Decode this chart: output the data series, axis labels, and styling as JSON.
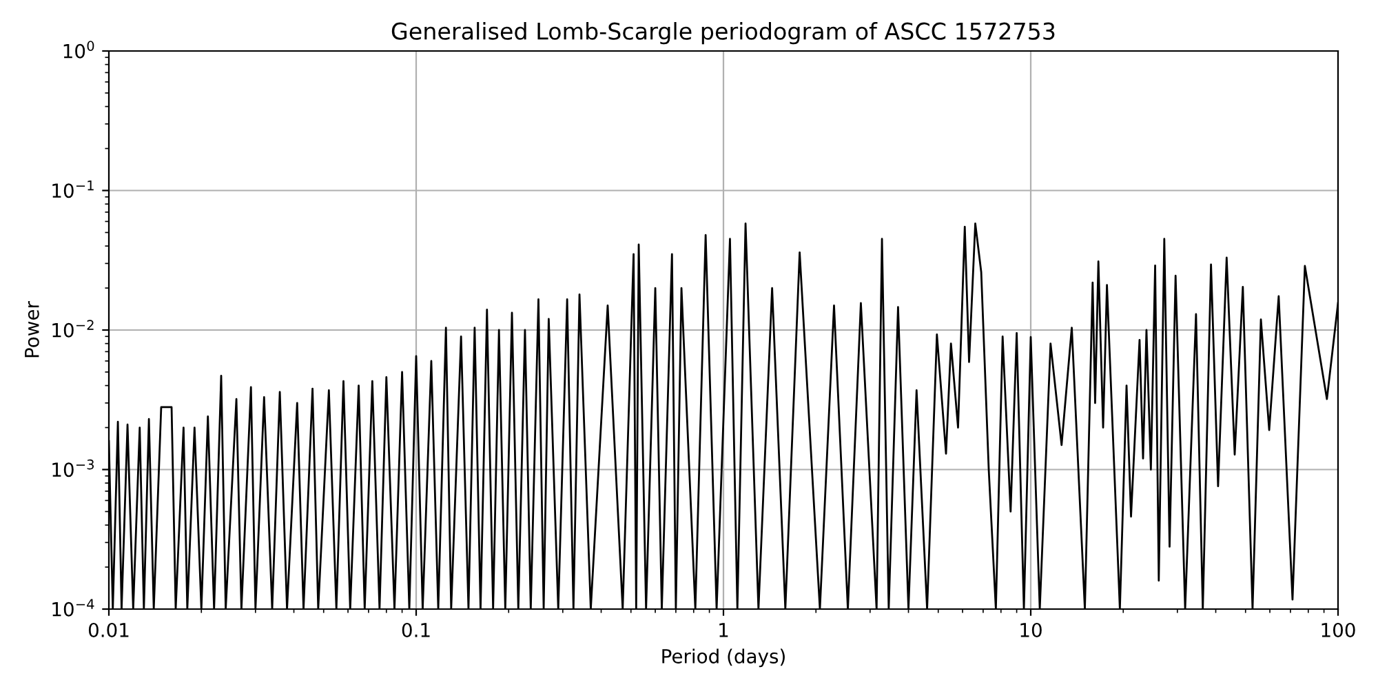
{
  "chart_data": {
    "type": "line",
    "title": "Generalised Lomb-Scargle periodogram of ASCC 1572753",
    "xlabel": "Period (days)",
    "ylabel": "Power",
    "log": "xy",
    "grid": true,
    "marker": "none",
    "line_style": "solid",
    "xlim": [
      0.01,
      100
    ],
    "ylim": [
      0.0001,
      1
    ],
    "xticks": [
      0.01,
      0.1,
      1,
      10,
      100
    ],
    "yticks": [
      {
        "value": 0.0001,
        "label": "10$^{−4}$"
      },
      {
        "value": 0.001,
        "label": "10$^{−3}$"
      },
      {
        "value": 0.01,
        "label": "10$^{−2}$"
      },
      {
        "value": 0.1,
        "label": "10$^{−1}$"
      },
      {
        "value": 1,
        "label": "10$^{0}$"
      }
    ],
    "series": [
      {
        "color": "#000000",
        "x": [
          0.01,
          0.0103,
          0.0107,
          0.011,
          0.0115,
          0.012,
          0.0126,
          0.013,
          0.0135,
          0.014,
          0.0148,
          0.016,
          0.0165,
          0.0175,
          0.018,
          0.019,
          0.02,
          0.021,
          0.022,
          0.0232,
          0.024,
          0.026,
          0.027,
          0.029,
          0.03,
          0.032,
          0.034,
          0.036,
          0.038,
          0.041,
          0.043,
          0.046,
          0.048,
          0.052,
          0.055,
          0.058,
          0.061,
          0.065,
          0.068,
          0.072,
          0.076,
          0.08,
          0.085,
          0.09,
          0.095,
          0.1,
          0.105,
          0.112,
          0.118,
          0.125,
          0.13,
          0.14,
          0.148,
          0.155,
          0.162,
          0.17,
          0.178,
          0.186,
          0.195,
          0.205,
          0.215,
          0.226,
          0.236,
          0.25,
          0.26,
          0.27,
          0.29,
          0.31,
          0.325,
          0.34,
          0.37,
          0.42,
          0.47,
          0.51,
          0.52,
          0.53,
          0.56,
          0.6,
          0.63,
          0.68,
          0.7,
          0.73,
          0.81,
          0.875,
          0.95,
          1.05,
          1.11,
          1.18,
          1.3,
          1.44,
          1.59,
          1.77,
          2.06,
          2.29,
          2.54,
          2.8,
          3.15,
          3.28,
          3.45,
          3.7,
          4.0,
          4.25,
          4.6,
          4.95,
          5.3,
          5.5,
          5.8,
          6.1,
          6.3,
          6.6,
          6.9,
          7.3,
          7.7,
          8.1,
          8.6,
          9.0,
          9.5,
          10,
          10.7,
          11.6,
          12.6,
          13.6,
          15,
          15.9,
          16.2,
          16.6,
          17.2,
          17.7,
          19.5,
          20.5,
          21.2,
          22.6,
          23.2,
          23.8,
          24.6,
          25.4,
          26.1,
          27.2,
          28.3,
          29.6,
          31.8,
          34.5,
          36.3,
          38.6,
          40.7,
          43.4,
          46.1,
          49,
          52.7,
          56.1,
          59.7,
          64.1,
          71.1,
          78,
          92,
          100
        ],
        "values": [
          0.0016,
          0.0001,
          0.0022,
          0.0001,
          0.0021,
          0.0001,
          0.002,
          0.0001,
          0.0023,
          0.0001,
          0.0028,
          0.0028,
          0.0001,
          0.002,
          0.0001,
          0.002,
          0.0001,
          0.0024,
          0.0001,
          0.0047,
          0.0001,
          0.0032,
          0.0001,
          0.0039,
          0.0001,
          0.0033,
          0.0001,
          0.0036,
          0.0001,
          0.003,
          0.0001,
          0.0038,
          0.0001,
          0.0037,
          0.0001,
          0.0043,
          0.0001,
          0.004,
          0.0001,
          0.0043,
          0.0001,
          0.0046,
          0.0001,
          0.005,
          0.0001,
          0.0065,
          0.0001,
          0.006,
          0.0001,
          0.0104,
          0.0001,
          0.009,
          0.0001,
          0.0104,
          0.0001,
          0.014,
          0.0001,
          0.01,
          0.0001,
          0.0133,
          0.0001,
          0.01,
          0.0001,
          0.0166,
          0.0001,
          0.012,
          0.0001,
          0.0166,
          0.0001,
          0.018,
          0.0001,
          0.015,
          0.0001,
          0.035,
          0.0001,
          0.041,
          0.0001,
          0.02,
          0.0001,
          0.035,
          0.0001,
          0.02,
          0.0001,
          0.048,
          0.0001,
          0.045,
          0.0001,
          0.058,
          0.0001,
          0.02,
          0.0001,
          0.036,
          0.0001,
          0.015,
          0.0001,
          0.0156,
          0.0001,
          0.045,
          0.0001,
          0.0146,
          0.0001,
          0.0037,
          0.0001,
          0.0093,
          0.0013,
          0.008,
          0.002,
          0.055,
          0.0059,
          0.058,
          0.026,
          0.001,
          0.0001,
          0.009,
          0.0005,
          0.0095,
          0.0001,
          0.0089,
          0.0001,
          0.008,
          0.0015,
          0.0104,
          0.0001,
          0.0219,
          0.003,
          0.031,
          0.002,
          0.021,
          0.0001,
          0.004,
          0.00046,
          0.0085,
          0.0012,
          0.01,
          0.001,
          0.029,
          0.00016,
          0.045,
          0.00028,
          0.0245,
          0.0001,
          0.013,
          0.0001,
          0.0295,
          0.00076,
          0.033,
          0.00128,
          0.0204,
          0.0001,
          0.0119,
          0.00192,
          0.0175,
          0.000117,
          0.0288,
          0.0032,
          0.0156
        ]
      }
    ]
  }
}
